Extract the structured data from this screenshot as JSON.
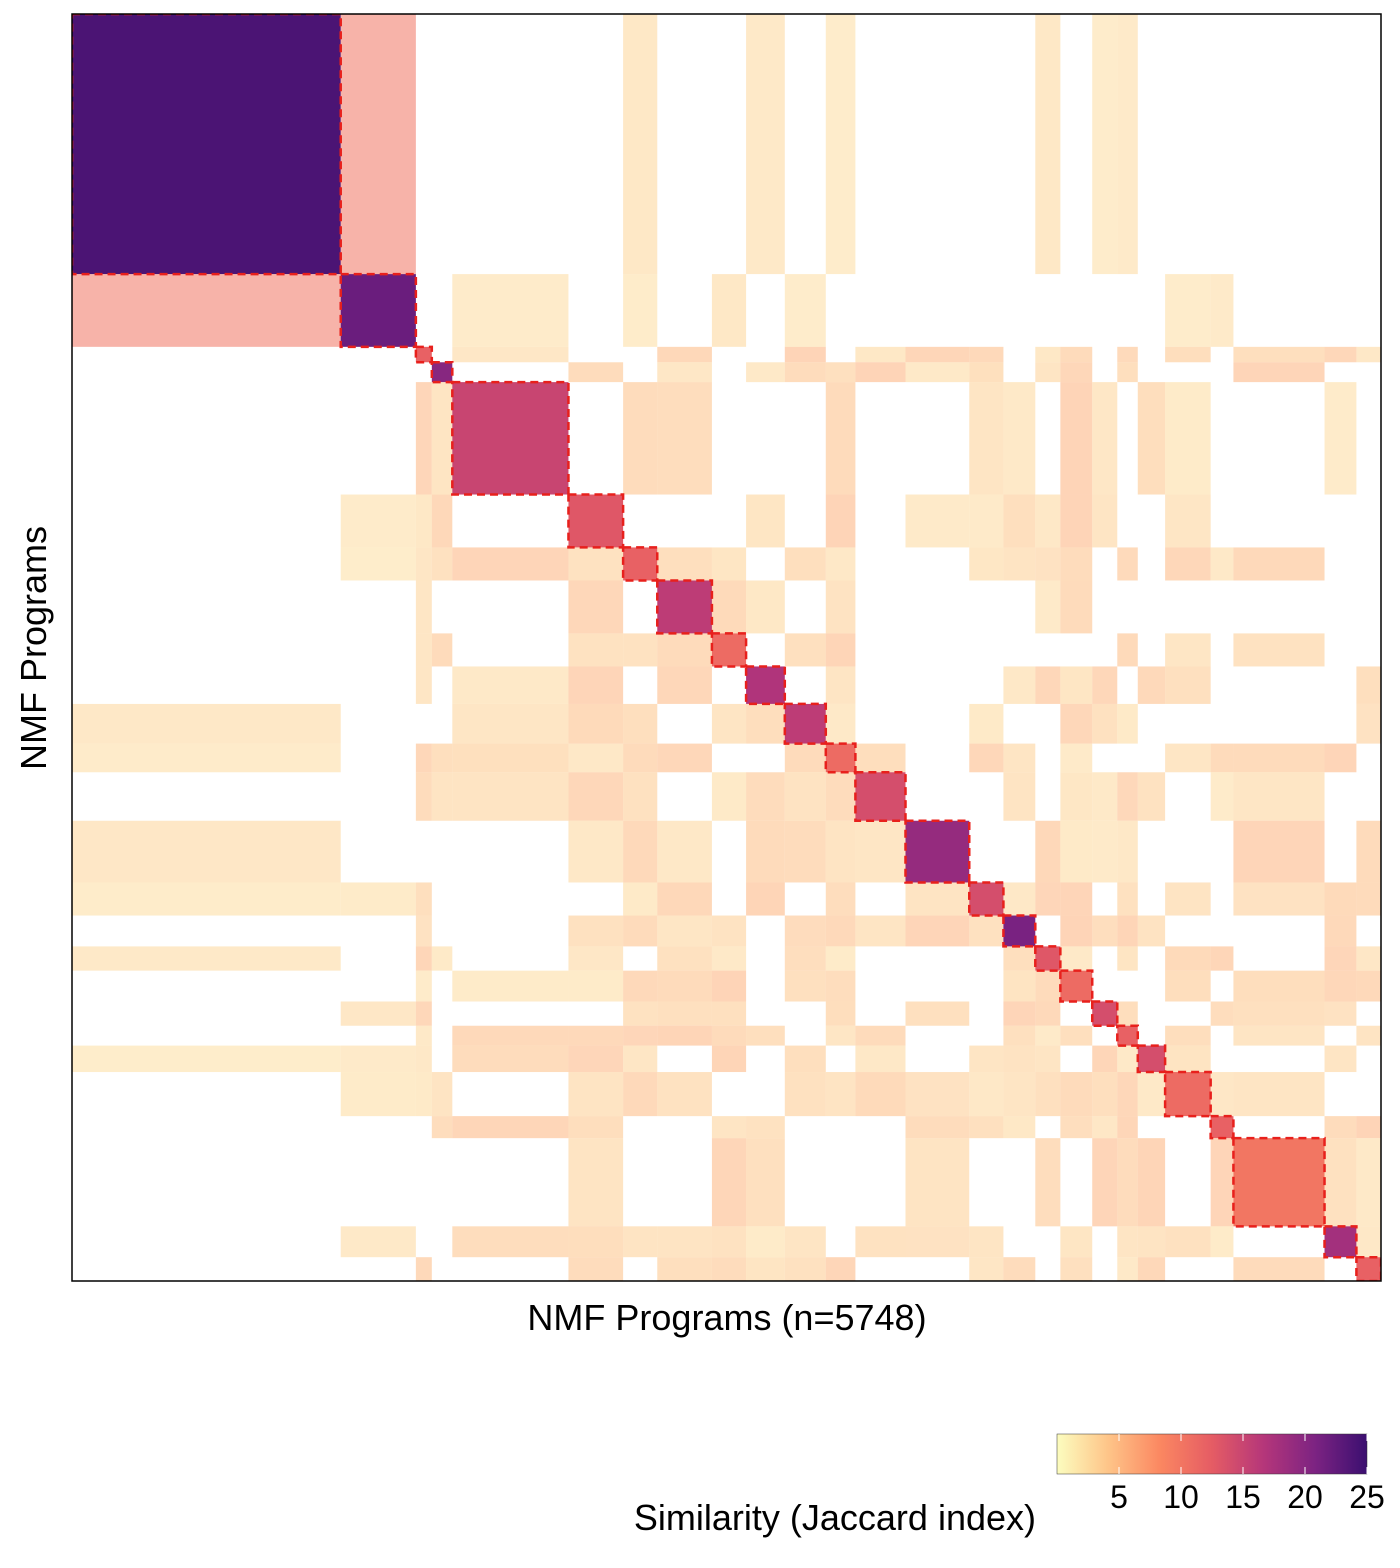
{
  "chart_data": {
    "type": "heatmap",
    "title": "",
    "xlabel": "NMF Programs (n=5748)",
    "ylabel": "NMF Programs",
    "n_programs": 5748,
    "value_range": [
      0,
      25
    ],
    "colorbar": {
      "title": "Similarity (Jaccard index)",
      "ticks": [
        5,
        10,
        15,
        20,
        25
      ],
      "palette": [
        "#fcfdbf",
        "#fec488",
        "#fb8761",
        "#e55c64",
        "#b5367a",
        "#7c2382",
        "#3b0f70"
      ]
    },
    "clusters": [
      {
        "start": 0,
        "end": 1180,
        "mean_similarity": 24
      },
      {
        "start": 1180,
        "end": 1510,
        "mean_similarity": 22
      },
      {
        "start": 1510,
        "end": 1580,
        "mean_similarity": 12
      },
      {
        "start": 1580,
        "end": 1670,
        "mean_similarity": 20
      },
      {
        "start": 1670,
        "end": 2180,
        "mean_similarity": 15
      },
      {
        "start": 2180,
        "end": 2420,
        "mean_similarity": 13
      },
      {
        "start": 2420,
        "end": 2570,
        "mean_similarity": 12
      },
      {
        "start": 2570,
        "end": 2810,
        "mean_similarity": 16
      },
      {
        "start": 2810,
        "end": 2960,
        "mean_similarity": 11
      },
      {
        "start": 2960,
        "end": 3130,
        "mean_similarity": 17
      },
      {
        "start": 3130,
        "end": 3310,
        "mean_similarity": 16
      },
      {
        "start": 3310,
        "end": 3440,
        "mean_similarity": 11
      },
      {
        "start": 3440,
        "end": 3660,
        "mean_similarity": 14
      },
      {
        "start": 3660,
        "end": 3940,
        "mean_similarity": 19
      },
      {
        "start": 3940,
        "end": 4090,
        "mean_similarity": 14
      },
      {
        "start": 4090,
        "end": 4230,
        "mean_similarity": 21
      },
      {
        "start": 4230,
        "end": 4340,
        "mean_similarity": 13
      },
      {
        "start": 4340,
        "end": 4480,
        "mean_similarity": 11
      },
      {
        "start": 4480,
        "end": 4590,
        "mean_similarity": 14
      },
      {
        "start": 4590,
        "end": 4680,
        "mean_similarity": 12
      },
      {
        "start": 4680,
        "end": 4800,
        "mean_similarity": 14
      },
      {
        "start": 4800,
        "end": 5000,
        "mean_similarity": 11
      },
      {
        "start": 5000,
        "end": 5100,
        "mean_similarity": 12
      },
      {
        "start": 5100,
        "end": 5500,
        "mean_similarity": 10
      },
      {
        "start": 5500,
        "end": 5640,
        "mean_similarity": 18
      },
      {
        "start": 5640,
        "end": 5748,
        "mean_similarity": 12
      }
    ]
  }
}
